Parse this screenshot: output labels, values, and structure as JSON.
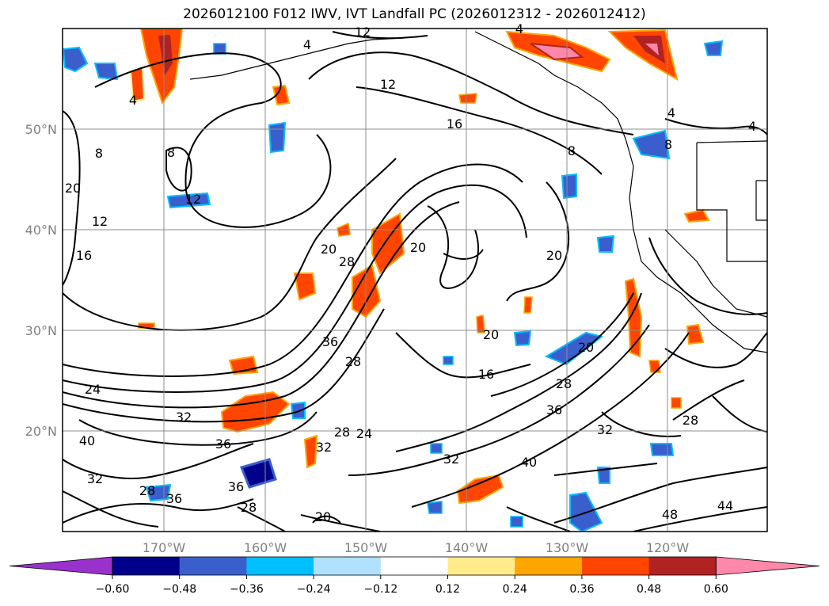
{
  "title": "2026012100 F012 IWV, IVT Landfall PC (2026012312 - 2026012412)",
  "lat_labels": [
    "50°N",
    "40°N",
    "30°N",
    "20°N"
  ],
  "lon_labels": [
    "170°W",
    "160°W",
    "150°W",
    "140°W",
    "130°W",
    "120°W"
  ],
  "contour_labels": [
    "12",
    "12",
    "16",
    "8",
    "8",
    "20",
    "12",
    "8",
    "16",
    "20",
    "20",
    "28",
    "20",
    "20",
    "20",
    "16",
    "28",
    "36",
    "24",
    "32",
    "40",
    "32",
    "36",
    "28",
    "36",
    "36",
    "28",
    "32",
    "28",
    "24",
    "32",
    "40",
    "36",
    "28",
    "32",
    "28",
    "20",
    "48",
    "44",
    "4",
    "4",
    "4",
    "4",
    "4",
    "8",
    "12"
  ],
  "colorbar": {
    "ticks": [
      "−0.60",
      "−0.48",
      "−0.36",
      "−0.24",
      "−0.12",
      "0.12",
      "0.24",
      "0.36",
      "0.48",
      "0.60"
    ],
    "colors": [
      "#9932cc",
      "#00008b",
      "#3a5fcd",
      "#00bfff",
      "#b0e2ff",
      "#ffffff",
      "#ffeb8a",
      "#ffa500",
      "#ff4500",
      "#b22222",
      "#ff88aa"
    ]
  }
}
